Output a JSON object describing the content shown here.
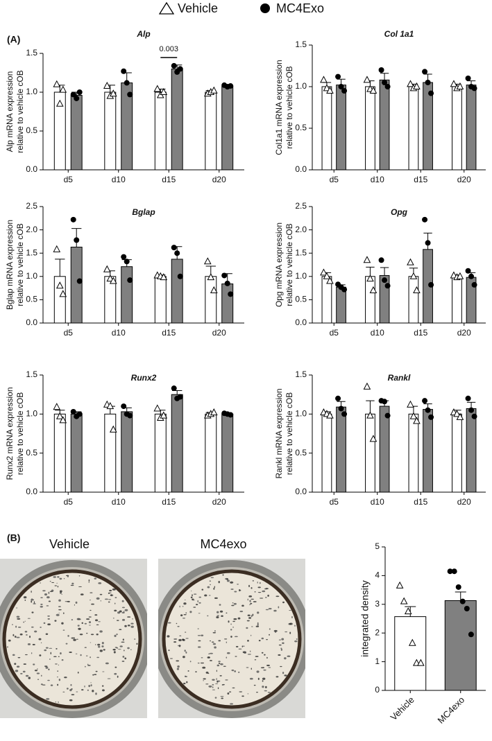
{
  "panel_labels": [
    "(A)",
    "(B)"
  ],
  "image_labels": [
    "Vehicle",
    "MC4exo"
  ],
  "chart_data": [
    {
      "type": "bar",
      "title": "Alp",
      "ylabel": [
        "Alp mRNA expression",
        "relative to vehicle cOB"
      ],
      "categories": [
        "d5",
        "d10",
        "d15",
        "d20"
      ],
      "ylim": [
        0,
        1.5
      ],
      "yticks": [
        {
          "value": 0,
          "label": "0.0"
        },
        0.5,
        {
          "value": 1,
          "label": "1.0"
        },
        1.5
      ],
      "series": [
        {
          "name": "Vehicle",
          "color": "#ffffff",
          "marker": "triangle",
          "values": [
            1,
            1,
            1,
            1
          ],
          "errors": [
            0.09,
            0.09,
            0.04,
            0.02
          ],
          "points": [
            [
              1.1,
              0.85,
              1.03
            ],
            [
              1.08,
              0.95,
              0.98
            ],
            [
              1.04,
              0.96,
              1.0
            ],
            [
              0.98,
              1.0,
              1.02
            ]
          ]
        },
        {
          "name": "MC4Exo",
          "color": "#808080",
          "marker": "circle",
          "values": [
            0.96,
            1.12,
            1.3,
            1.08
          ],
          "errors": [
            0.04,
            0.13,
            0.05,
            0.02
          ],
          "points": [
            [
              0.97,
              0.92,
              1.0
            ],
            [
              1.27,
              1.12,
              0.97
            ],
            [
              1.34,
              1.26,
              1.3
            ],
            [
              1.09,
              1.07,
              1.08
            ]
          ]
        }
      ],
      "annotations": [
        {
          "text": "0.003",
          "category": 2
        }
      ]
    },
    {
      "type": "bar",
      "title": "Col 1a1",
      "ylabel": [
        "Col1a1 mRNA expression",
        "relative to vehicle cOB"
      ],
      "categories": [
        "d5",
        "d10",
        "d15",
        "d20"
      ],
      "ylim": [
        0,
        1.5
      ],
      "yticks": [
        {
          "value": 0,
          "label": "0.0"
        },
        0.5,
        {
          "value": 1,
          "label": "1.0"
        },
        1.5
      ],
      "series": [
        {
          "name": "Vehicle",
          "color": "#ffffff",
          "marker": "triangle",
          "values": [
            1,
            1,
            1,
            1
          ],
          "errors": [
            0.05,
            0.07,
            0.03,
            0.03
          ],
          "points": [
            [
              1.08,
              0.98,
              0.95
            ],
            [
              1.08,
              0.97,
              0.95
            ],
            [
              1.03,
              0.98,
              1.0
            ],
            [
              1.03,
              0.98,
              1.0
            ]
          ]
        },
        {
          "name": "MC4Exo",
          "color": "#808080",
          "marker": "circle",
          "values": [
            1.02,
            1.08,
            1.05,
            1.02
          ],
          "errors": [
            0.07,
            0.08,
            0.1,
            0.05
          ],
          "points": [
            [
              1.12,
              1.0,
              0.95
            ],
            [
              1.2,
              1.05,
              1.0
            ],
            [
              1.18,
              1.05,
              0.92
            ],
            [
              1.1,
              1.0,
              0.98
            ]
          ]
        }
      ]
    },
    {
      "type": "bar",
      "title": "Bglap",
      "ylabel": [
        "Bglap mRNA expression",
        "relative to vehicle cOB"
      ],
      "categories": [
        "d5",
        "d10",
        "d15",
        "d20"
      ],
      "ylim": [
        0,
        2.5
      ],
      "yticks": [
        {
          "value": 0,
          "label": "0.0"
        },
        0.5,
        {
          "value": 1,
          "label": "1.0"
        },
        1.5,
        {
          "value": 2,
          "label": "2.0"
        },
        2.5
      ],
      "series": [
        {
          "name": "Vehicle",
          "color": "#ffffff",
          "marker": "triangle",
          "values": [
            1,
            1,
            1,
            1
          ],
          "errors": [
            0.37,
            0.12,
            0.03,
            0.22
          ],
          "points": [
            [
              1.58,
              0.8,
              0.62
            ],
            [
              1.15,
              0.95,
              0.9
            ],
            [
              1.02,
              1.0,
              0.98
            ],
            [
              1.32,
              0.98,
              0.7
            ]
          ]
        },
        {
          "name": "MC4Exo",
          "color": "#808080",
          "marker": "circle",
          "values": [
            1.63,
            1.21,
            1.37,
            0.84
          ],
          "errors": [
            0.4,
            0.15,
            0.27,
            0.22
          ],
          "points": [
            [
              2.22,
              1.78,
              0.9
            ],
            [
              1.42,
              1.32,
              0.92
            ],
            [
              1.62,
              1.5,
              1.0
            ],
            [
              1.02,
              0.85,
              0.62
            ]
          ]
        }
      ]
    },
    {
      "type": "bar",
      "title": "Opg",
      "ylabel": [
        "Opg mRNA expression",
        "relative to vehicle cOB"
      ],
      "categories": [
        "d5",
        "d10",
        "d15",
        "d20"
      ],
      "ylim": [
        0,
        2.5
      ],
      "yticks": [
        {
          "value": 0,
          "label": "0.0"
        },
        0.5,
        {
          "value": 1,
          "label": "1.0"
        },
        1.5,
        {
          "value": 2,
          "label": "2.0"
        },
        2.5
      ],
      "series": [
        {
          "name": "Vehicle",
          "color": "#ffffff",
          "marker": "triangle",
          "values": [
            1,
            1,
            1,
            1
          ],
          "errors": [
            0.08,
            0.2,
            0.18,
            0.03
          ],
          "points": [
            [
              1.08,
              1.0,
              0.9
            ],
            [
              1.35,
              0.95,
              0.7
            ],
            [
              1.3,
              1.0,
              0.7
            ],
            [
              1.02,
              0.98,
              1.0
            ]
          ]
        },
        {
          "name": "MC4Exo",
          "color": "#808080",
          "marker": "circle",
          "values": [
            0.77,
            1.02,
            1.58,
            0.98
          ],
          "errors": [
            0.05,
            0.17,
            0.35,
            0.1
          ],
          "points": [
            [
              0.83,
              0.77,
              0.72
            ],
            [
              1.35,
              0.92,
              0.8
            ],
            [
              2.22,
              1.72,
              0.82
            ],
            [
              1.12,
              1.0,
              0.82
            ]
          ]
        }
      ]
    },
    {
      "type": "bar",
      "title": "Runx2",
      "ylabel": [
        "Runx2 mRNA expression",
        "relative to vehicle cOB"
      ],
      "categories": [
        "d5",
        "d10",
        "d15",
        "d20"
      ],
      "ylim": [
        0,
        1.5
      ],
      "yticks": [
        {
          "value": 0,
          "label": "0.0"
        },
        0.5,
        {
          "value": 1,
          "label": "1.0"
        },
        1.5
      ],
      "series": [
        {
          "name": "Vehicle",
          "color": "#ffffff",
          "marker": "triangle",
          "values": [
            1,
            1,
            1,
            1
          ],
          "errors": [
            0.05,
            0.1,
            0.05,
            0.02
          ],
          "points": [
            [
              1.09,
              0.97,
              0.92
            ],
            [
              1.12,
              1.1,
              0.8
            ],
            [
              1.07,
              0.95,
              0.98
            ],
            [
              0.98,
              1.0,
              1.02
            ]
          ]
        },
        {
          "name": "MC4Exo",
          "color": "#808080",
          "marker": "circle",
          "values": [
            1.0,
            1.03,
            1.25,
            1.0
          ],
          "errors": [
            0.03,
            0.05,
            0.05,
            0.01
          ],
          "points": [
            [
              1.03,
              0.97,
              1.0
            ],
            [
              1.1,
              1.0,
              0.98
            ],
            [
              1.33,
              1.2,
              1.22
            ],
            [
              1.01,
              1.0,
              0.99
            ]
          ]
        }
      ]
    },
    {
      "type": "bar",
      "title": "Rankl",
      "ylabel": [
        "Rankl mRNA expression",
        "relative to vehicle cOB"
      ],
      "categories": [
        "d5",
        "d10",
        "d15",
        "d20"
      ],
      "ylim": [
        0,
        1.5
      ],
      "yticks": [
        {
          "value": 0,
          "label": "0.0"
        },
        0.5,
        {
          "value": 1,
          "label": "1.0"
        },
        1.5
      ],
      "series": [
        {
          "name": "Vehicle",
          "color": "#ffffff",
          "marker": "triangle",
          "values": [
            1,
            1,
            1,
            1
          ],
          "errors": [
            0.03,
            0.17,
            0.1,
            0.05
          ],
          "points": [
            [
              1.02,
              1.0,
              0.98
            ],
            [
              1.35,
              0.98,
              0.68
            ],
            [
              1.12,
              0.97,
              0.91
            ],
            [
              1.02,
              1.0,
              0.96
            ]
          ]
        },
        {
          "name": "MC4Exo",
          "color": "#808080",
          "marker": "circle",
          "values": [
            1.09,
            1.1,
            1.06,
            1.07
          ],
          "errors": [
            0.07,
            0.07,
            0.07,
            0.08
          ],
          "points": [
            [
              1.2,
              1.07,
              1.0
            ],
            [
              1.17,
              1.16,
              0.98
            ],
            [
              1.17,
              1.05,
              0.96
            ],
            [
              1.2,
              1.05,
              0.97
            ]
          ]
        }
      ]
    },
    {
      "type": "bar",
      "ylabel": "integrated density",
      "categories": [
        "Vehicle",
        "MC4exo"
      ],
      "ylim": [
        0,
        5
      ],
      "yticks": [
        0,
        1,
        2,
        3,
        4,
        5
      ],
      "values": [
        2.57,
        3.13
      ],
      "errors": [
        0.35,
        0.3
      ],
      "colors": [
        "#ffffff",
        "#808080"
      ],
      "markers": [
        "triangle",
        "circle"
      ],
      "points": [
        [
          3.65,
          3.1,
          2.75,
          1.65,
          0.95,
          0.95
        ],
        [
          4.15,
          4.15,
          3.6,
          3.1,
          2.85,
          1.95
        ]
      ]
    }
  ]
}
